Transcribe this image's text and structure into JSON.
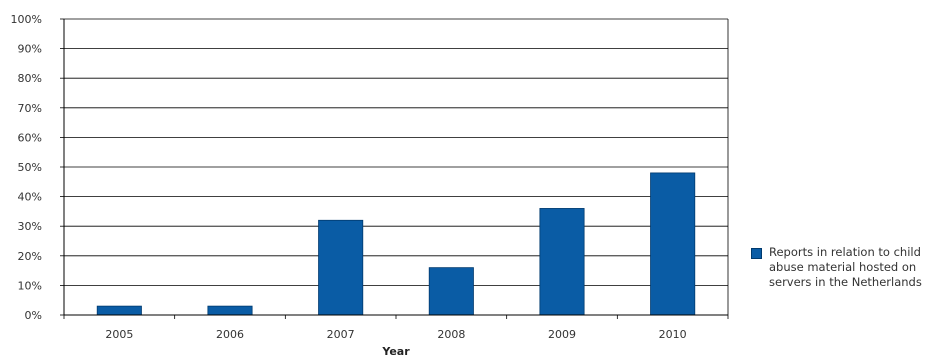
{
  "chart_data": {
    "type": "bar",
    "title": "",
    "xlabel": "Year",
    "ylabel": "",
    "categories": [
      "2005",
      "2006",
      "2007",
      "2008",
      "2009",
      "2010"
    ],
    "series": [
      {
        "name": "Reports in relation to child abuse material hosted on servers in the Netherlands",
        "values": [
          3,
          3,
          32,
          16,
          36,
          48
        ],
        "color": "#0a5ca5"
      }
    ],
    "ylim": [
      0,
      100
    ],
    "ytick_step": 10,
    "ytick_suffix": "%",
    "grid": true,
    "legend_position": "right"
  }
}
